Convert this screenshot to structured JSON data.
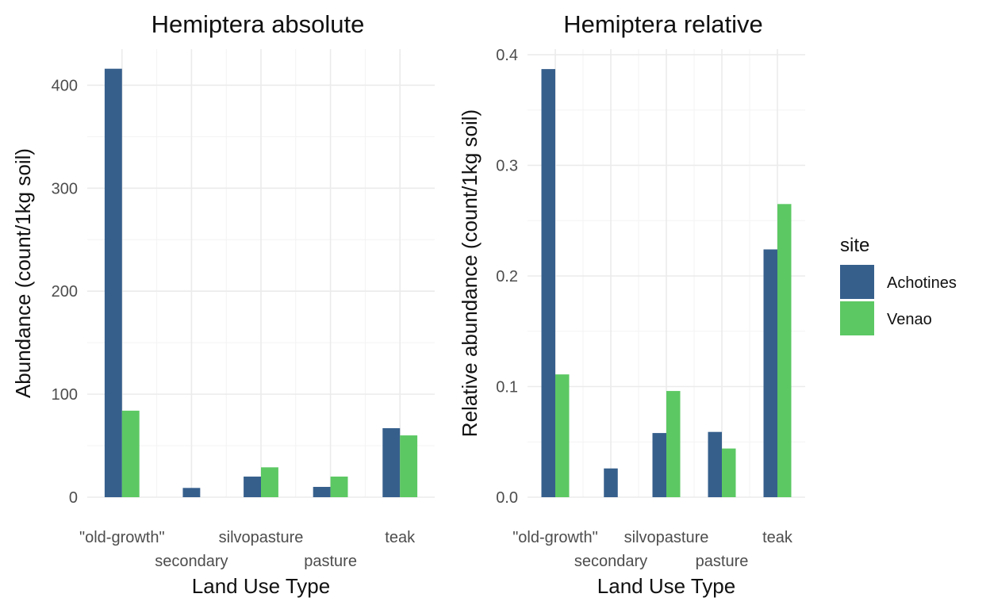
{
  "chart_data": [
    {
      "type": "bar",
      "title": "Hemiptera absolute",
      "xlabel": "Land Use Type",
      "ylabel": "Abundance (count/1kg soil)",
      "categories": [
        "\"old-growth\"",
        "secondary",
        "silvopasture",
        "pasture",
        "teak"
      ],
      "ylim": [
        0,
        435
      ],
      "yticks": [
        0,
        100,
        200,
        300,
        400
      ],
      "ytick_labels": [
        "0",
        "100",
        "200",
        "300",
        "400"
      ],
      "grid": true,
      "series": [
        {
          "name": "Achotines",
          "values": [
            416,
            9,
            20,
            10,
            67
          ]
        },
        {
          "name": "Venao",
          "values": [
            84,
            null,
            29,
            20,
            60
          ]
        }
      ]
    },
    {
      "type": "bar",
      "title": "Hemiptera relative",
      "xlabel": "Land Use Type",
      "ylabel": "Relative abundance (count/1kg soil)",
      "categories": [
        "\"old-growth\"",
        "secondary",
        "silvopasture",
        "pasture",
        "teak"
      ],
      "ylim": [
        0,
        0.405
      ],
      "yticks": [
        0,
        0.1,
        0.2,
        0.3,
        0.4
      ],
      "ytick_labels": [
        "0.0",
        "0.1",
        "0.2",
        "0.3",
        "0.4"
      ],
      "grid": true,
      "series": [
        {
          "name": "Achotines",
          "values": [
            0.387,
            0.026,
            0.058,
            0.059,
            0.224
          ]
        },
        {
          "name": "Venao",
          "values": [
            0.111,
            null,
            0.096,
            0.044,
            0.265
          ]
        }
      ]
    }
  ],
  "legend": {
    "title": "site",
    "placement": "right",
    "items": [
      {
        "label": "Achotines",
        "color": "#365f8c"
      },
      {
        "label": "Venao",
        "color": "#5cc863"
      }
    ]
  }
}
